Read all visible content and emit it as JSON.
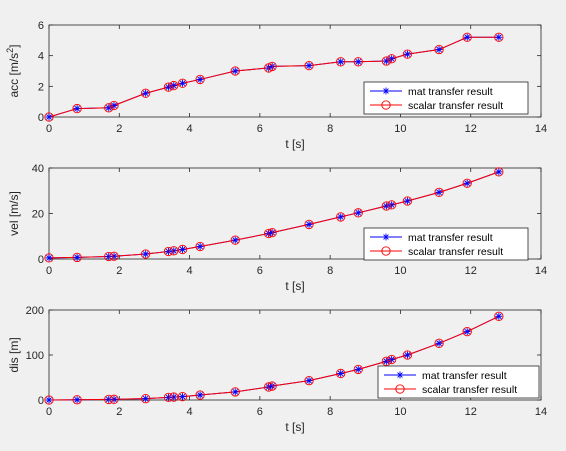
{
  "chart_data": [
    {
      "type": "line",
      "xlabel": "t [s]",
      "ylabel": "acc [m/s",
      "ylabel_sup": "2",
      "ylabel_end": "]",
      "xlim": [
        0,
        14
      ],
      "ylim": [
        0,
        6
      ],
      "xticks": [
        0,
        2,
        4,
        6,
        8,
        10,
        12,
        14
      ],
      "yticks": [
        0,
        2,
        4,
        6
      ],
      "legend_placement": "lower-right",
      "x": [
        0,
        0.8,
        1.7,
        1.85,
        2.75,
        3.4,
        3.55,
        3.8,
        4.3,
        5.3,
        6.25,
        6.35,
        7.4,
        8.3,
        8.8,
        9.6,
        9.75,
        10.2,
        11.1,
        11.9,
        12.8
      ],
      "series": [
        {
          "name": "mat transfer result",
          "color": "#0000ff",
          "marker": "asterisk",
          "values": [
            0,
            0.55,
            0.6,
            0.75,
            1.55,
            1.95,
            2.05,
            2.2,
            2.45,
            3.0,
            3.2,
            3.3,
            3.35,
            3.6,
            3.6,
            3.65,
            3.8,
            4.1,
            4.4,
            5.2,
            5.2
          ]
        },
        {
          "name": "scalar transfer result",
          "color": "#ff0000",
          "marker": "circle",
          "values": [
            0,
            0.55,
            0.6,
            0.75,
            1.55,
            1.95,
            2.05,
            2.2,
            2.45,
            3.0,
            3.2,
            3.3,
            3.35,
            3.6,
            3.6,
            3.65,
            3.8,
            4.1,
            4.4,
            5.2,
            5.2
          ]
        }
      ]
    },
    {
      "type": "line",
      "xlabel": "t [s]",
      "ylabel": "vel [m/s]",
      "xlim": [
        0,
        14
      ],
      "ylim": [
        0,
        40
      ],
      "xticks": [
        0,
        2,
        4,
        6,
        8,
        10,
        12,
        14
      ],
      "yticks": [
        0,
        20,
        40
      ],
      "legend_placement": "lower-right",
      "x": [
        0,
        0.8,
        1.7,
        1.85,
        2.75,
        3.4,
        3.55,
        3.8,
        4.3,
        5.3,
        6.25,
        6.35,
        7.4,
        8.3,
        8.8,
        9.6,
        9.75,
        10.2,
        11.1,
        11.9,
        12.8
      ],
      "series": [
        {
          "name": "mat transfer result",
          "color": "#0000ff",
          "marker": "asterisk",
          "values": [
            0.5,
            0.7,
            1.1,
            1.2,
            2.2,
            3.3,
            3.6,
            4.2,
            5.5,
            8.3,
            11.2,
            11.6,
            15.2,
            18.5,
            20.3,
            23.3,
            23.8,
            25.5,
            29.3,
            33.3,
            38.3
          ]
        },
        {
          "name": "scalar transfer result",
          "color": "#ff0000",
          "marker": "circle",
          "values": [
            0.5,
            0.7,
            1.1,
            1.2,
            2.2,
            3.3,
            3.6,
            4.2,
            5.5,
            8.3,
            11.2,
            11.6,
            15.2,
            18.5,
            20.3,
            23.3,
            23.8,
            25.5,
            29.3,
            33.3,
            38.3
          ]
        }
      ]
    },
    {
      "type": "line",
      "xlabel": "t [s]",
      "ylabel": "dis [m]",
      "xlim": [
        0,
        14
      ],
      "ylim": [
        0,
        200
      ],
      "xticks": [
        0,
        2,
        4,
        6,
        8,
        10,
        12,
        14
      ],
      "yticks": [
        0,
        100,
        200
      ],
      "legend_placement": "lower-right",
      "x": [
        0,
        0.8,
        1.7,
        1.85,
        2.75,
        3.4,
        3.55,
        3.8,
        4.3,
        5.3,
        6.25,
        6.35,
        7.4,
        8.3,
        8.8,
        9.6,
        9.75,
        10.2,
        11.1,
        11.9,
        12.8
      ],
      "series": [
        {
          "name": "mat transfer result",
          "color": "#0000ff",
          "marker": "asterisk",
          "values": [
            0,
            0.5,
            1.3,
            1.5,
            3.0,
            5.8,
            6.5,
            7.5,
            11,
            18,
            29,
            31,
            43,
            59,
            68,
            86,
            90,
            100,
            126,
            152,
            186
          ]
        },
        {
          "name": "scalar transfer result",
          "color": "#ff0000",
          "marker": "circle",
          "values": [
            0,
            0.5,
            1.3,
            1.5,
            3.0,
            5.8,
            6.5,
            7.5,
            11,
            18,
            29,
            31,
            43,
            59,
            68,
            86,
            90,
            100,
            126,
            152,
            186
          ]
        }
      ]
    }
  ]
}
